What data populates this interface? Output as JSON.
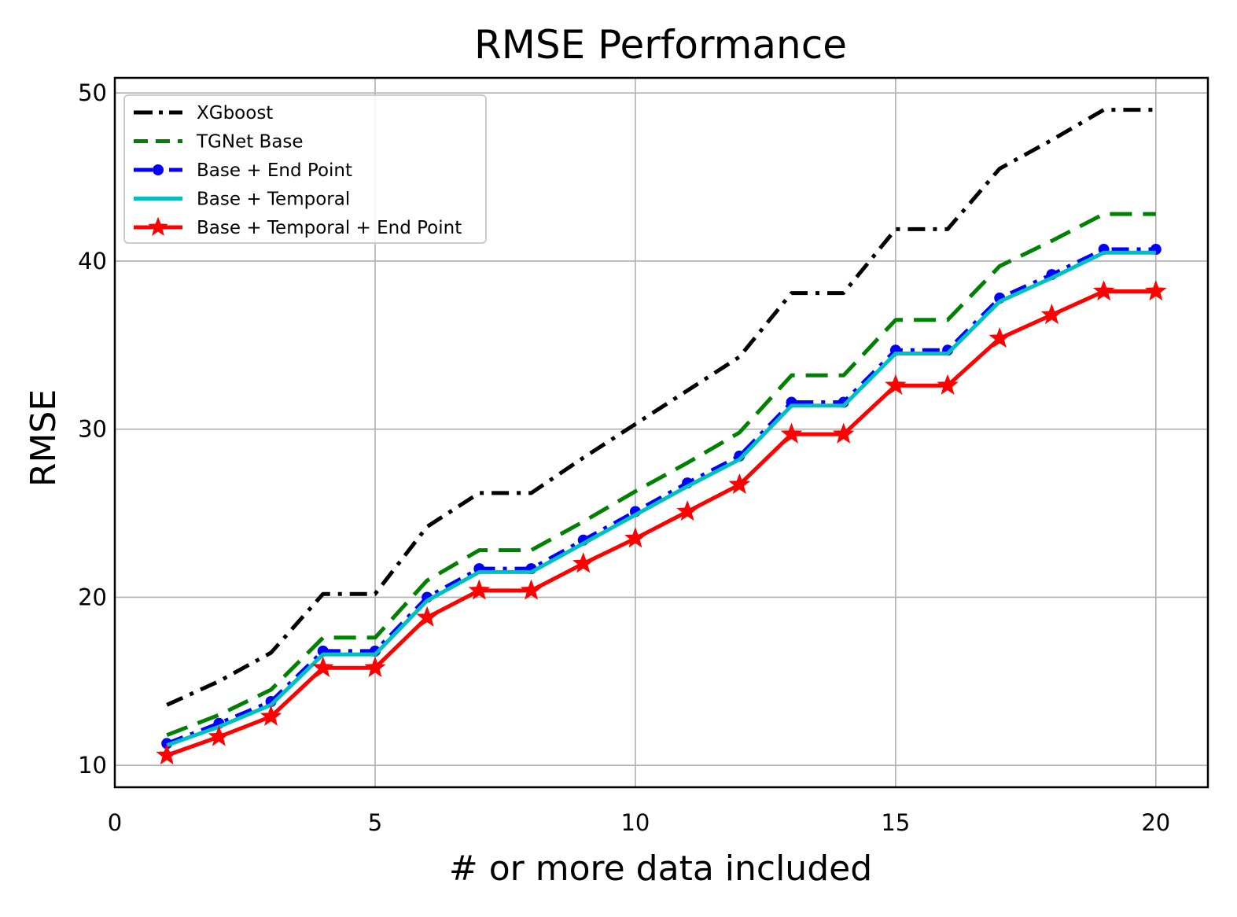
{
  "chart_data": {
    "type": "line",
    "title": "RMSE Performance",
    "xlabel": "# or more data included",
    "ylabel": "RMSE",
    "xlim": [
      0,
      21
    ],
    "ylim": [
      8.7,
      50.9
    ],
    "xticks": [
      0,
      5,
      10,
      15,
      20
    ],
    "yticks": [
      10,
      20,
      30,
      40,
      50
    ],
    "grid": true,
    "legend_position": "upper-left",
    "x": [
      1,
      2,
      3,
      4,
      5,
      6,
      7,
      8,
      9,
      10,
      11,
      12,
      13,
      14,
      15,
      16,
      17,
      18,
      19,
      20
    ],
    "series": [
      {
        "name": "XGboost",
        "color": "#000000",
        "style": "dashdot",
        "marker": "none",
        "values": [
          13.6,
          15.0,
          16.7,
          20.2,
          20.2,
          24.2,
          26.2,
          26.2,
          28.3,
          30.3,
          32.3,
          34.3,
          38.1,
          38.1,
          41.9,
          41.9,
          45.5,
          47.2,
          49.0,
          49.0
        ]
      },
      {
        "name": "TGNet Base",
        "color": "#008000",
        "style": "dashed",
        "marker": "none",
        "values": [
          11.8,
          13.0,
          14.5,
          17.6,
          17.6,
          21.0,
          22.8,
          22.8,
          24.5,
          26.3,
          28.0,
          29.8,
          33.2,
          33.2,
          36.5,
          36.5,
          39.7,
          41.2,
          42.8,
          42.8
        ]
      },
      {
        "name": "Base + End Point",
        "color": "#0000ff",
        "style": "dashdot",
        "marker": "circle",
        "values": [
          11.3,
          12.5,
          13.8,
          16.8,
          16.8,
          20.0,
          21.7,
          21.7,
          23.4,
          25.1,
          26.8,
          28.4,
          31.6,
          31.6,
          34.7,
          34.7,
          37.8,
          39.2,
          40.7,
          40.7
        ]
      },
      {
        "name": "Base + Temporal",
        "color": "#00bfbf",
        "style": "solid",
        "marker": "none",
        "values": [
          11.2,
          12.3,
          13.6,
          16.6,
          16.6,
          19.8,
          21.5,
          21.5,
          23.2,
          24.9,
          26.6,
          28.2,
          31.4,
          31.4,
          34.5,
          34.5,
          37.6,
          39.0,
          40.5,
          40.5
        ]
      },
      {
        "name": "Base + Temporal + End Point",
        "color": "#ff0000",
        "style": "solid",
        "marker": "star",
        "values": [
          10.6,
          11.7,
          12.9,
          15.8,
          15.8,
          18.8,
          20.4,
          20.4,
          22.0,
          23.5,
          25.1,
          26.7,
          29.7,
          29.7,
          32.6,
          32.6,
          35.4,
          36.8,
          38.2,
          38.2
        ]
      }
    ]
  }
}
